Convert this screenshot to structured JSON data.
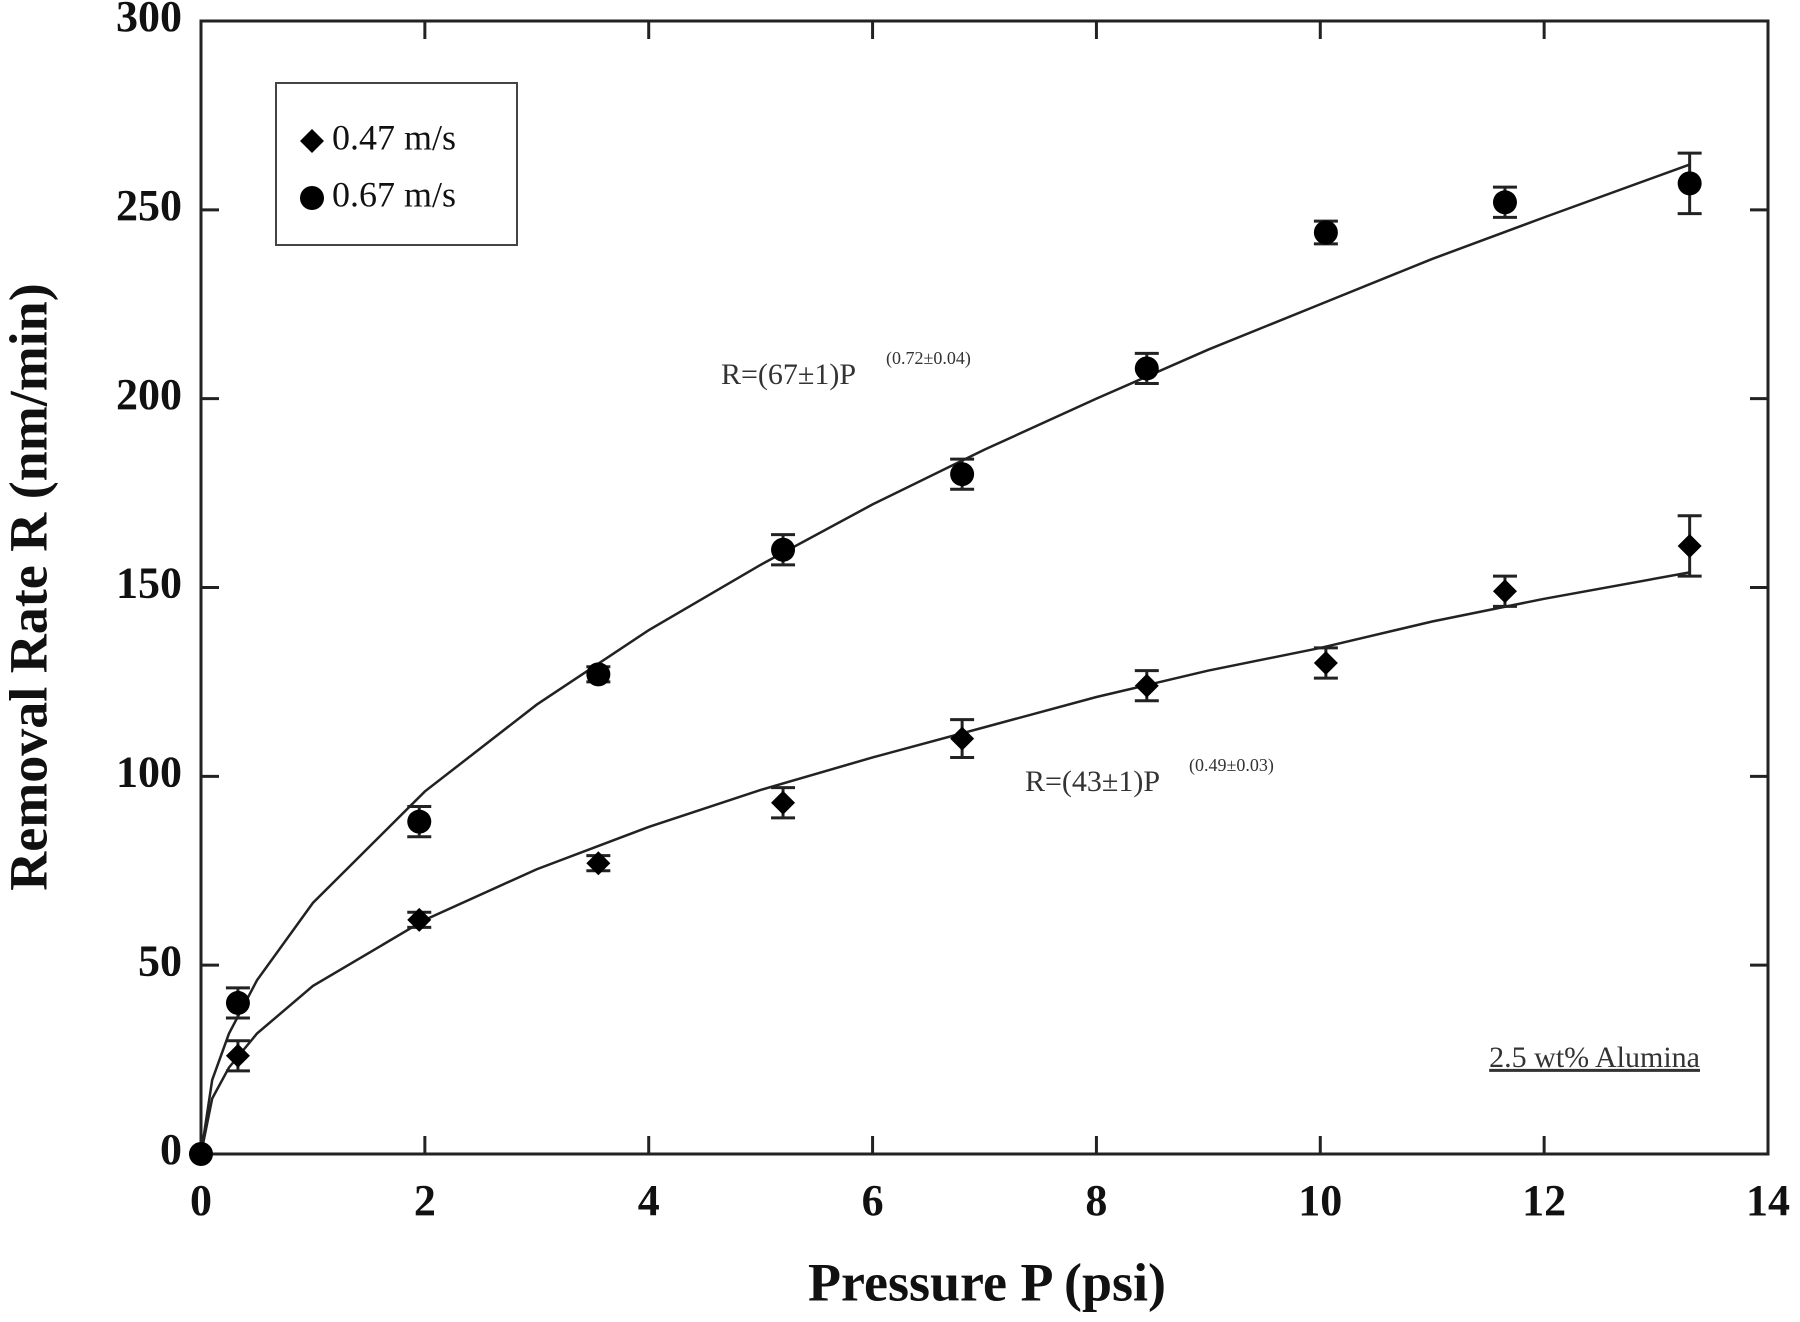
{
  "chart_data": {
    "type": "scatter",
    "x_label": "Pressure P (psi)",
    "y_label": "Removal Rate R (nm/min)",
    "xlim": [
      0,
      14
    ],
    "ylim": [
      0,
      300
    ],
    "xticks": [
      0,
      2,
      4,
      6,
      8,
      10,
      12,
      14
    ],
    "yticks": [
      0,
      50,
      100,
      150,
      200,
      250,
      300
    ],
    "grid": false,
    "legend_position": "upper left",
    "series": [
      {
        "name": "0.47 m/s",
        "marker": "diamond",
        "color": "#000000",
        "x": [
          0,
          0.33,
          1.95,
          3.55,
          5.2,
          6.8,
          8.45,
          10.05,
          11.65,
          13.3
        ],
        "values": [
          0,
          26,
          62,
          77,
          93,
          110,
          124,
          130,
          149,
          161
        ],
        "errors": [
          0,
          4,
          2,
          2,
          4,
          5,
          4,
          4,
          4,
          8
        ]
      },
      {
        "name": "0.67 m/s",
        "marker": "circle",
        "color": "#000000",
        "x": [
          0,
          0.33,
          1.95,
          3.55,
          5.2,
          6.8,
          8.45,
          10.05,
          11.65,
          13.3
        ],
        "values": [
          0,
          40,
          88,
          127,
          160,
          180,
          208,
          244,
          252,
          257
        ],
        "errors": [
          0,
          4,
          4,
          2,
          4,
          4,
          4,
          3,
          4,
          8
        ]
      }
    ],
    "fits": [
      {
        "x": [
          0,
          0.1,
          0.25,
          0.5,
          1,
          2,
          3,
          4,
          5,
          6,
          7,
          8,
          9,
          10,
          11,
          12,
          13.3
        ],
        "values": [
          0,
          14.7,
          22.9,
          31.9,
          44.5,
          62,
          75.4,
          86.6,
          96.4,
          105,
          113,
          121,
          128,
          134,
          141,
          147,
          154
        ]
      },
      {
        "x": [
          0,
          0.1,
          0.25,
          0.5,
          1,
          2,
          3,
          4,
          5,
          6,
          7,
          8,
          9,
          10,
          11,
          12,
          13.3
        ],
        "values": [
          0,
          19.6,
          31.9,
          46,
          66.5,
          96,
          119,
          138.7,
          156,
          172,
          186.5,
          200,
          213,
          225,
          237,
          248,
          262
        ]
      }
    ],
    "annotations": [
      {
        "text": "R=(67±1)P",
        "superscript": "(0.72±0.04)"
      },
      {
        "text": "R=(43±1)P",
        "superscript": "(0.49±0.03)"
      },
      {
        "text": "2.5 wt% Alumina"
      }
    ]
  }
}
